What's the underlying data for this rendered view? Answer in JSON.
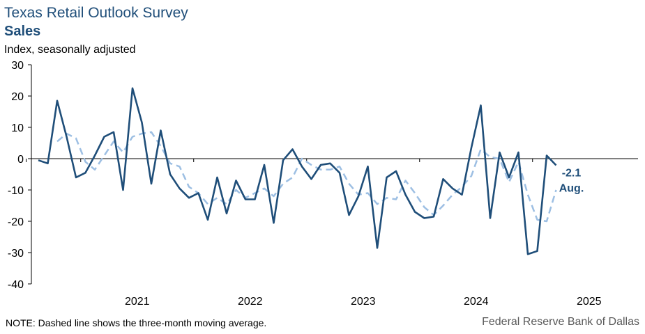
{
  "header": {
    "title": "Texas Retail Outlook Survey",
    "subtitle": "Sales",
    "ylabel": "Index, seasonally adjusted"
  },
  "footer": {
    "note": "NOTE: Dashed line shows the three-month moving average.",
    "source": "Federal Reserve Bank of Dallas"
  },
  "chart_data": {
    "type": "line",
    "title": "Texas Retail Outlook Survey",
    "subtitle": "Sales",
    "ylabel": "Index, seasonally adjusted",
    "ylim": [
      -40,
      30
    ],
    "yticks": [
      30,
      20,
      10,
      0,
      -10,
      -20,
      -30,
      -40
    ],
    "x_start": "2020-08",
    "x_year_labels": [
      "2021",
      "2022",
      "2023",
      "2024",
      "2025"
    ],
    "grid": false,
    "colors": {
      "series": "#1f4e79",
      "average": "#9dbfe3",
      "text": "#1f4e79"
    },
    "series": [
      {
        "name": "Sales",
        "style": "solid",
        "values": [
          -0.5,
          -1.5,
          18.5,
          7.0,
          -6.0,
          -4.5,
          1.0,
          7.0,
          8.5,
          -10.0,
          22.5,
          11.5,
          -8.0,
          9.0,
          -5.0,
          -9.5,
          -12.5,
          -11.0,
          -19.5,
          -6.0,
          -17.5,
          -7.0,
          -13.0,
          -13.0,
          -2.0,
          -20.5,
          -0.5,
          3.0,
          -2.5,
          -6.5,
          -2.0,
          -1.5,
          -4.5,
          -18.0,
          -12.0,
          -2.5,
          -28.5,
          -6.0,
          -4.0,
          -11.5,
          -17.0,
          -19.0,
          -18.5,
          -6.5,
          -9.5,
          -11.5,
          3.5,
          17.0,
          -19.0,
          2.0,
          -6.0,
          2.0,
          -30.5,
          -29.5,
          1.0,
          -2.1
        ]
      },
      {
        "name": "Three-month moving average",
        "style": "dashed",
        "values": [
          null,
          null,
          5.5,
          8.0,
          6.5,
          -1.0,
          -3.5,
          1.0,
          5.5,
          2.0,
          7.0,
          8.0,
          8.5,
          4.0,
          -1.5,
          -2.5,
          -9.0,
          -11.0,
          -14.5,
          -12.5,
          -14.5,
          -10.0,
          -12.5,
          -11.0,
          -9.5,
          -12.0,
          -8.0,
          -6.0,
          0.0,
          -2.0,
          -3.5,
          -3.5,
          -2.5,
          -8.0,
          -11.5,
          -11.0,
          -14.5,
          -12.5,
          -13.0,
          -7.0,
          -11.0,
          -15.5,
          -18.0,
          -15.0,
          -11.5,
          -9.0,
          -5.5,
          3.0,
          0.5,
          0.0,
          -7.5,
          -1.0,
          -11.5,
          -19.5,
          -20.0,
          -10.0
        ]
      }
    ],
    "annotations": [
      {
        "text": "-2.1",
        "series": "Sales",
        "at": "last"
      },
      {
        "text": "Aug.",
        "series": "Sales",
        "at": "last"
      }
    ]
  }
}
